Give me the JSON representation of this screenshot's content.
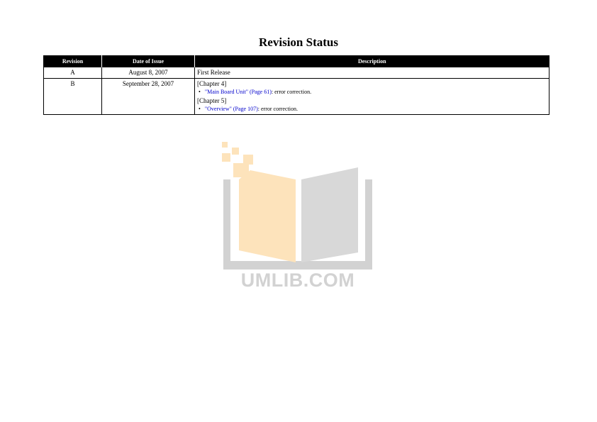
{
  "page": {
    "title": "Revision Status"
  },
  "table": {
    "headers": {
      "revision": "Revision",
      "date": "Date of Issue",
      "description": "Description"
    },
    "rows": [
      {
        "revision": "A",
        "date": "August 8, 2007",
        "description": "First Release"
      },
      {
        "revision": "B",
        "date": "September 28, 2007",
        "sections": [
          {
            "heading": "[Chapter 4]",
            "bullet": "•",
            "link": "\"Main Board Unit\" (Page 61)",
            "text": ": error correction."
          },
          {
            "heading": "[Chapter 5]",
            "bullet": "•",
            "link": "\"Overview\" (Page 107)",
            "text": ":  error correction."
          }
        ]
      }
    ]
  },
  "watermark": {
    "text": "UMLIB.COM",
    "colors": {
      "left_page": "#fde3bb",
      "right_page": "#d8d8d8",
      "frame": "#d2d2d2",
      "pixels": "#fde3bb"
    }
  }
}
